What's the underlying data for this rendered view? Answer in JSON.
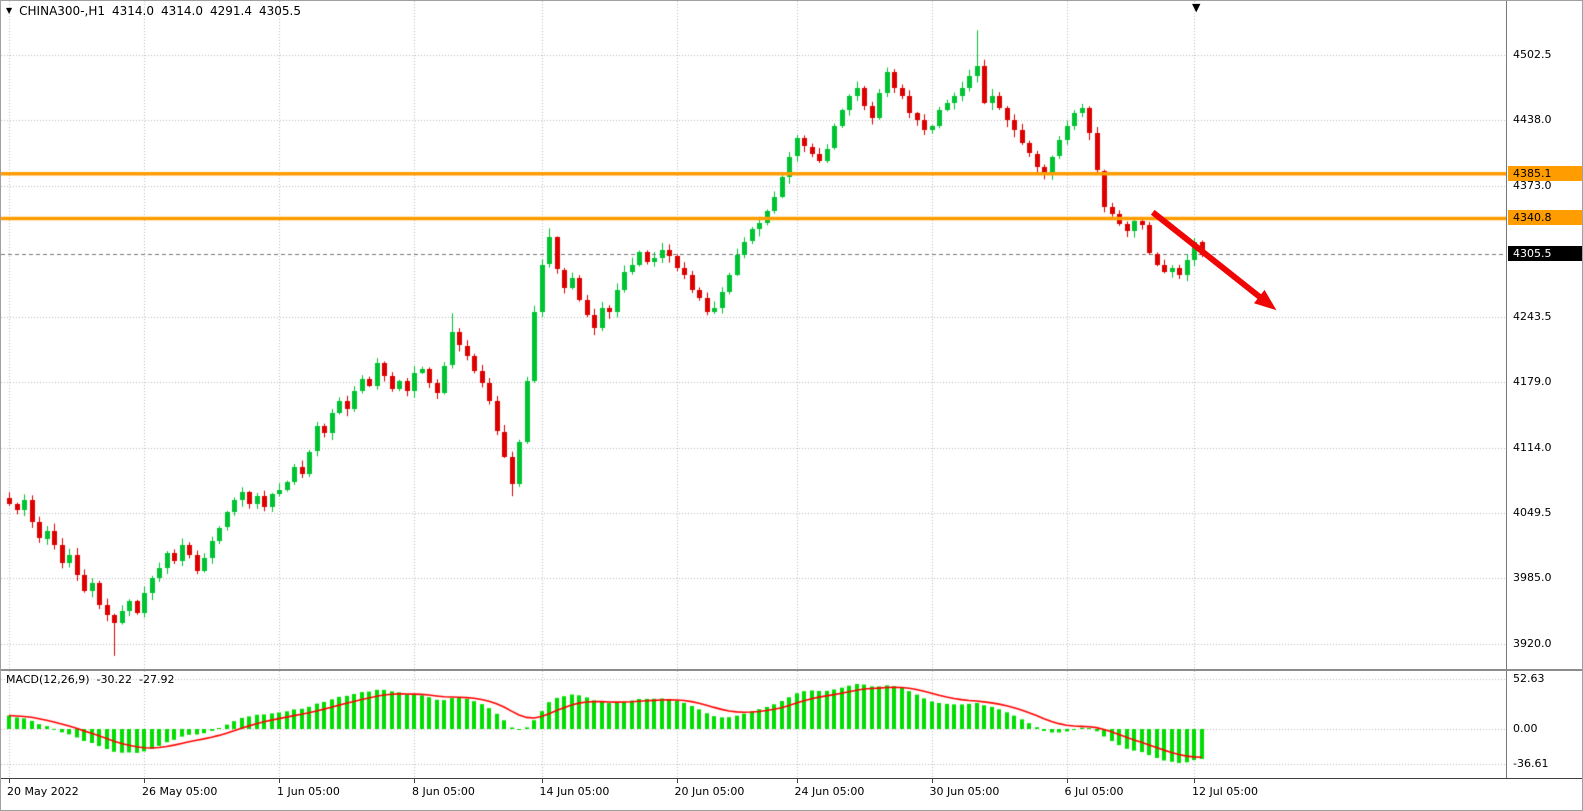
{
  "header": {
    "symbol_timeframe": "CHINA300-,H1",
    "open": "4314.0",
    "high": "4314.0",
    "low": "4291.4",
    "close": "4305.5"
  },
  "colors": {
    "background": "#FFFFFF",
    "grid": "#BEBEBE",
    "bull": "#00C332",
    "bear": "#DD0000",
    "level": "#FF9C00",
    "level_text": "#000000",
    "price_tag_bg": "#000000",
    "price_tag_text": "#FFFFFF",
    "current_price_line": "#777777",
    "macd_hist": "#00DD00",
    "macd_signal": "#FF0000",
    "arrow": "#F00505",
    "axis_text": "#000000"
  },
  "chart_data": [
    {
      "type": "candlestick",
      "title": "CHINA300-,H1",
      "ylim": [
        3895,
        4556
      ],
      "y_ticks": [
        4502.5,
        4438.0,
        4373.0,
        4243.5,
        4179.0,
        4114.0,
        4049.5,
        3985.0,
        3920.0
      ],
      "price_tag": 4305.5,
      "levels": [
        {
          "price": 4385.1,
          "label": "4385.1"
        },
        {
          "price": 4340.8,
          "label": "4340.8"
        }
      ],
      "x_tick_labels": [
        "20 May 2022",
        "26 May 05:00",
        "1 Jun 05:00",
        "8 Jun 05:00",
        "14 Jun 05:00",
        "20 Jun 05:00",
        "24 Jun 05:00",
        "30 Jun 05:00",
        "6 Jul 05:00",
        "12 Jul 05:00"
      ],
      "x_tick_indices": [
        0,
        18,
        36,
        54,
        71,
        89,
        105,
        123,
        141,
        158
      ],
      "closes": [
        4058,
        4052,
        4062,
        4040,
        4024,
        4032,
        4018,
        4000,
        4008,
        3988,
        3972,
        3980,
        3958,
        3948,
        3940,
        3952,
        3962,
        3950,
        3970,
        3985,
        3995,
        4010,
        4002,
        4018,
        4008,
        3992,
        4005,
        4022,
        4035,
        4050,
        4062,
        4070,
        4058,
        4066,
        4055,
        4068,
        4072,
        4080,
        4095,
        4088,
        4110,
        4135,
        4128,
        4148,
        4160,
        4152,
        4170,
        4182,
        4175,
        4198,
        4185,
        4172,
        4180,
        4170,
        4188,
        4192,
        4178,
        4168,
        4195,
        4228,
        4215,
        4205,
        4190,
        4178,
        4160,
        4130,
        4105,
        4078,
        4120,
        4180,
        4248,
        4295,
        4322,
        4290,
        4272,
        4282,
        4260,
        4245,
        4232,
        4252,
        4248,
        4270,
        4288,
        4295,
        4308,
        4298,
        4302,
        4310,
        4304,
        4292,
        4285,
        4270,
        4262,
        4248,
        4252,
        4268,
        4285,
        4305,
        4318,
        4330,
        4336,
        4348,
        4362,
        4382,
        4402,
        4420,
        4412,
        4405,
        4398,
        4410,
        4432,
        4448,
        4462,
        4470,
        4452,
        4440,
        4465,
        4486,
        4470,
        4462,
        4445,
        4438,
        4428,
        4432,
        4448,
        4455,
        4462,
        4470,
        4482,
        4492,
        4455,
        4462,
        4450,
        4438,
        4428,
        4415,
        4405,
        4392,
        4385,
        4402,
        4418,
        4432,
        4445,
        4450,
        4425,
        4388,
        4352,
        4345,
        4335,
        4328,
        4338,
        4334,
        4306,
        4295,
        4288,
        4292,
        4285,
        4300,
        4318,
        4305.5
      ],
      "wick_overrides": {
        "14": {
          "low": 3908
        },
        "59": {
          "high": 4247
        },
        "67": {
          "low": 4066
        },
        "72": {
          "high": 4331
        },
        "129": {
          "high": 4527
        }
      },
      "annotation_arrow": {
        "from_index": 152.5,
        "from_price": 4347,
        "to_index": 169,
        "to_price": 4250
      }
    },
    {
      "type": "bar",
      "title": "MACD(12,26,9)",
      "label": "MACD(12,26,9)",
      "value_main": "-30.22",
      "value_signal": "-27.92",
      "params": {
        "fast": 12,
        "slow": 26,
        "signal": 9
      },
      "y_ticks": [
        52.63,
        0.0,
        -36.61
      ],
      "y_tick_labels": [
        "52.63",
        "0.00",
        "-36.61"
      ],
      "legend_position": "top-left"
    }
  ]
}
